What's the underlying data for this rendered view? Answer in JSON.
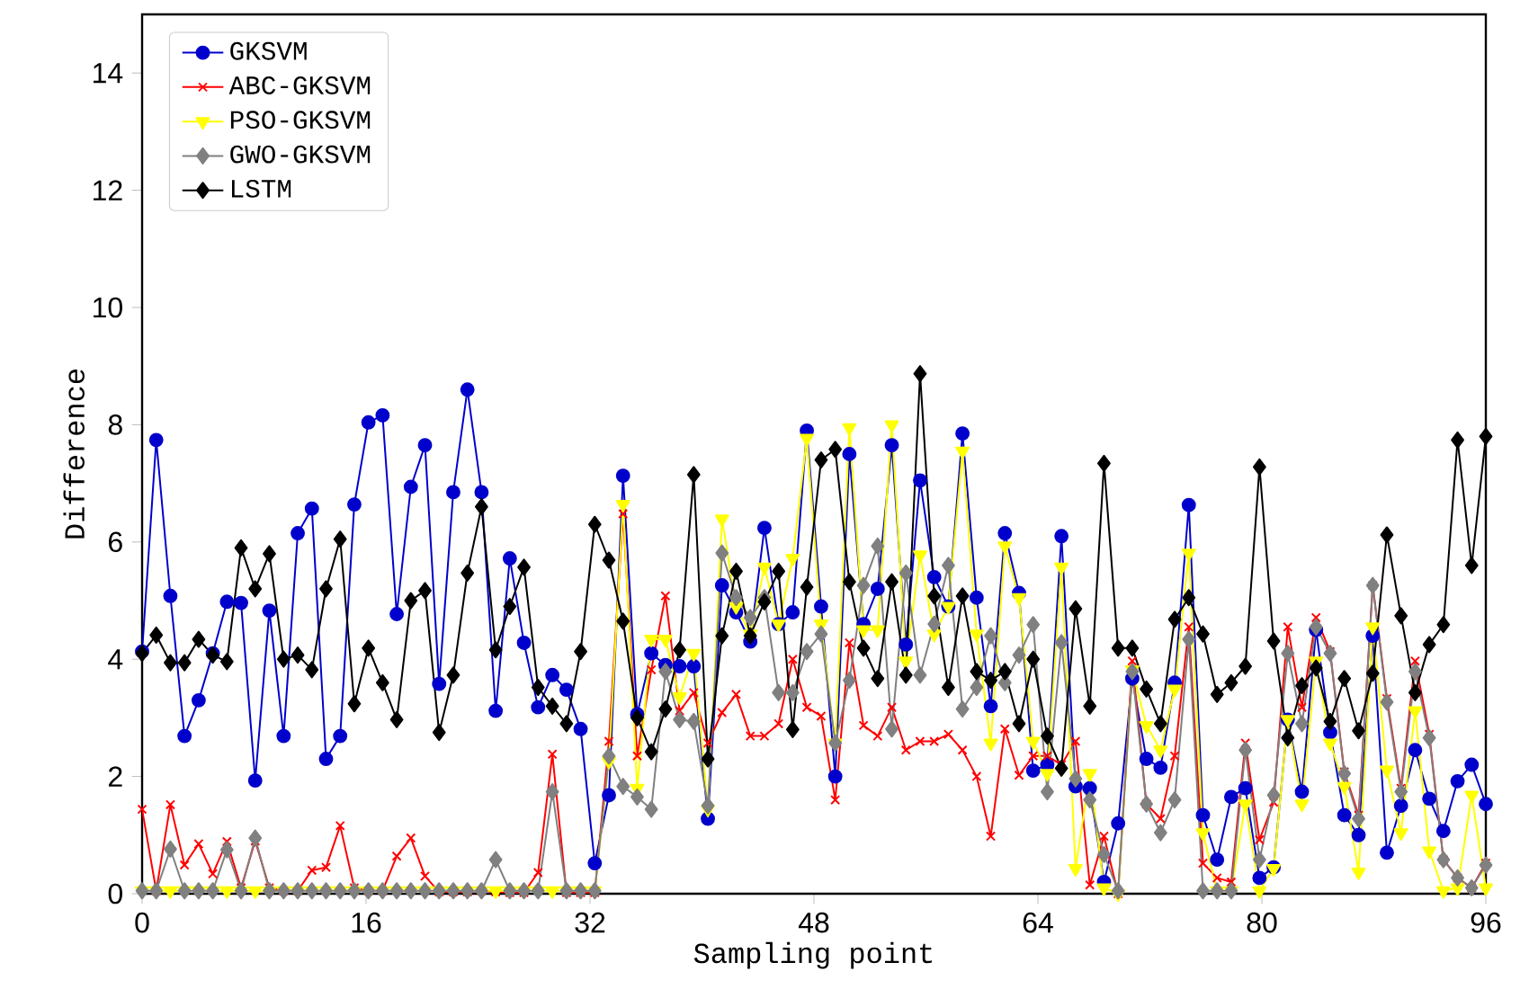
{
  "chart_data": {
    "type": "line",
    "xlabel": "Sampling point",
    "ylabel": "Difference",
    "xlim": [
      0,
      96
    ],
    "ylim": [
      0,
      15
    ],
    "xticks": [
      0,
      16,
      32,
      48,
      64,
      80,
      96
    ],
    "yticks": [
      0,
      2,
      4,
      6,
      8,
      10,
      12,
      14
    ],
    "grid": false,
    "legend": "top left",
    "line_style": "solid",
    "x": [
      0,
      1.01,
      2.02,
      3.03,
      4.04,
      5.05,
      6.06,
      7.07,
      8.08,
      9.09,
      10.11,
      11.12,
      12.13,
      13.14,
      14.15,
      15.16,
      16.17,
      17.18,
      18.19,
      19.2,
      20.21,
      21.22,
      22.23,
      23.24,
      24.25,
      25.26,
      26.27,
      27.28,
      28.29,
      29.31,
      30.32,
      31.33,
      32.34,
      33.35,
      34.36,
      35.37,
      36.38,
      37.39,
      38.4,
      39.41,
      40.42,
      41.43,
      42.44,
      43.45,
      44.46,
      45.47,
      46.48,
      47.49,
      48.51,
      49.52,
      50.53,
      51.54,
      52.55,
      53.56,
      54.57,
      55.58,
      56.59,
      57.6,
      58.61,
      59.62,
      60.63,
      61.64,
      62.65,
      63.66,
      64.67,
      65.68,
      66.69,
      67.71,
      68.72,
      69.73,
      70.74,
      71.75,
      72.76,
      73.77,
      74.78,
      75.79,
      76.8,
      77.81,
      78.82,
      79.83,
      80.84,
      81.85,
      82.86,
      83.87,
      84.88,
      85.89,
      86.91,
      87.92,
      88.93,
      89.94,
      90.95,
      91.96,
      92.97,
      93.98,
      94.99,
      96
    ],
    "series": [
      {
        "name": "GKSVM",
        "color": "#0000cc",
        "marker": "circle",
        "values": [
          4.13,
          7.74,
          5.08,
          2.69,
          3.3,
          4.1,
          4.98,
          4.96,
          1.93,
          4.83,
          2.69,
          6.15,
          6.57,
          2.3,
          2.69,
          6.64,
          8.04,
          8.16,
          4.77,
          6.94,
          7.65,
          3.58,
          6.85,
          8.6,
          6.85,
          3.12,
          5.72,
          4.28,
          3.18,
          3.73,
          3.48,
          2.81,
          0.52,
          1.68,
          7.13,
          3.06,
          4.1,
          3.9,
          3.88,
          3.88,
          1.28,
          5.26,
          4.8,
          4.3,
          6.24,
          4.6,
          4.8,
          7.9,
          4.9,
          2.0,
          7.5,
          4.6,
          5.2,
          7.65,
          4.25,
          7.05,
          5.4,
          4.9,
          7.85,
          5.05,
          3.2,
          6.15,
          5.13,
          2.1,
          2.2,
          6.1,
          1.83,
          1.8,
          0.2,
          1.2,
          3.67,
          2.3,
          2.15,
          3.6,
          6.63,
          1.34,
          0.58,
          1.65,
          1.8,
          0.27,
          0.45,
          2.97,
          1.74,
          4.5,
          2.75,
          1.34,
          1.0,
          4.4,
          0.7,
          1.5,
          2.45,
          1.62,
          1.07,
          1.92,
          2.2,
          1.53
        ]
      },
      {
        "name": "ABC-GKSVM",
        "color": "#ff0000",
        "marker": "cross",
        "values": [
          1.44,
          0.05,
          1.52,
          0.49,
          0.85,
          0.34,
          0.89,
          0.1,
          0.9,
          0.1,
          0.05,
          0.05,
          0.4,
          0.45,
          1.16,
          0.1,
          0.05,
          0.05,
          0.64,
          0.95,
          0.3,
          0.03,
          0.03,
          0.03,
          0.05,
          0.03,
          0.02,
          0.02,
          0.36,
          2.38,
          0.02,
          0.02,
          0.02,
          2.6,
          6.48,
          2.35,
          3.82,
          5.08,
          3.12,
          3.43,
          2.57,
          3.09,
          3.4,
          2.69,
          2.69,
          2.9,
          4.0,
          3.18,
          3.03,
          1.6,
          4.28,
          2.87,
          2.69,
          3.18,
          2.45,
          2.6,
          2.6,
          2.72,
          2.45,
          2.0,
          0.98,
          2.81,
          2.02,
          2.35,
          2.35,
          2.2,
          2.6,
          0.15,
          0.98,
          0.0,
          3.97,
          1.53,
          1.28,
          2.35,
          4.55,
          0.52,
          0.27,
          0.2,
          2.57,
          0.92,
          1.56,
          4.55,
          3.18,
          4.71,
          4.13,
          2.08,
          1.34,
          5.26,
          3.33,
          1.8,
          3.97,
          2.72,
          0.58,
          0.27,
          0.1,
          0.52
        ]
      },
      {
        "name": "PSO-GKSVM",
        "color": "#ffff00",
        "marker": "triangle",
        "values": [
          0.05,
          0.05,
          0.05,
          0.05,
          0.05,
          0.05,
          0.05,
          0.05,
          0.05,
          0.05,
          0.05,
          0.05,
          0.05,
          0.05,
          0.05,
          0.05,
          0.05,
          0.05,
          0.05,
          0.05,
          0.05,
          0.05,
          0.05,
          0.05,
          0.05,
          0.05,
          0.05,
          0.05,
          0.05,
          0.05,
          0.05,
          0.05,
          0.05,
          2.26,
          6.64,
          1.8,
          4.34,
          4.34,
          3.36,
          4.1,
          1.44,
          6.39,
          4.9,
          4.43,
          5.57,
          4.6,
          5.72,
          7.77,
          4.6,
          2.57,
          7.95,
          4.5,
          4.5,
          8.0,
          3.97,
          5.78,
          4.43,
          4.9,
          7.55,
          4.43,
          2.57,
          5.93,
          5.05,
          2.6,
          2.05,
          5.57,
          0.43,
          2.05,
          0.1,
          0.0,
          3.82,
          2.87,
          2.45,
          3.49,
          5.81,
          1.04,
          0.05,
          0.05,
          1.53,
          0.05,
          0.43,
          2.97,
          1.53,
          3.97,
          2.57,
          1.83,
          0.37,
          4.55,
          2.11,
          1.04,
          3.12,
          0.73,
          0.05,
          0.1,
          1.68,
          0.1
        ]
      },
      {
        "name": "GWO-GKSVM",
        "color": "#808080",
        "marker": "diamond",
        "values": [
          0.05,
          0.05,
          0.76,
          0.05,
          0.05,
          0.05,
          0.75,
          0.05,
          0.95,
          0.05,
          0.05,
          0.05,
          0.05,
          0.05,
          0.05,
          0.05,
          0.05,
          0.05,
          0.05,
          0.05,
          0.05,
          0.05,
          0.05,
          0.05,
          0.05,
          0.58,
          0.05,
          0.05,
          0.05,
          1.74,
          0.05,
          0.05,
          0.05,
          2.35,
          1.83,
          1.65,
          1.44,
          3.79,
          2.97,
          2.94,
          1.5,
          5.81,
          5.05,
          4.71,
          5.05,
          3.43,
          3.43,
          4.13,
          4.43,
          2.57,
          3.64,
          5.26,
          5.93,
          2.81,
          5.47,
          3.73,
          4.6,
          5.6,
          3.15,
          3.52,
          4.4,
          3.6,
          4.07,
          4.59,
          1.74,
          4.28,
          1.96,
          1.6,
          0.67,
          0.05,
          3.79,
          1.53,
          1.04,
          1.6,
          4.34,
          0.05,
          0.05,
          0.05,
          2.45,
          0.58,
          1.68,
          4.1,
          2.9,
          4.55,
          4.1,
          2.05,
          1.28,
          5.26,
          3.27,
          1.74,
          3.79,
          2.66,
          0.58,
          0.27,
          0.1,
          0.49
        ]
      },
      {
        "name": "LSTM",
        "color": "#000000",
        "marker": "diamond",
        "values": [
          4.1,
          4.41,
          3.94,
          3.94,
          4.34,
          4.07,
          3.96,
          5.9,
          5.2,
          5.8,
          4.0,
          4.07,
          3.82,
          5.2,
          6.05,
          3.24,
          4.19,
          3.6,
          2.97,
          5.0,
          5.17,
          2.75,
          3.73,
          5.47,
          6.6,
          4.16,
          4.9,
          5.57,
          3.52,
          3.2,
          2.9,
          4.13,
          6.3,
          5.69,
          4.65,
          3.0,
          2.42,
          3.15,
          4.16,
          7.15,
          2.3,
          4.4,
          5.5,
          4.4,
          4.98,
          5.5,
          2.8,
          5.23,
          7.4,
          7.58,
          5.32,
          4.19,
          3.67,
          5.32,
          3.73,
          8.87,
          5.08,
          3.52,
          5.08,
          3.79,
          3.64,
          3.79,
          2.9,
          4.0,
          2.69,
          2.14,
          4.86,
          3.2,
          7.34,
          4.19,
          4.19,
          3.49,
          2.9,
          4.68,
          5.05,
          4.43,
          3.4,
          3.6,
          3.88,
          7.28,
          4.31,
          2.66,
          3.55,
          3.85,
          2.94,
          3.67,
          2.78,
          3.76,
          6.12,
          4.74,
          3.43,
          4.25,
          4.59,
          7.74,
          5.6,
          7.8
        ]
      }
    ]
  }
}
